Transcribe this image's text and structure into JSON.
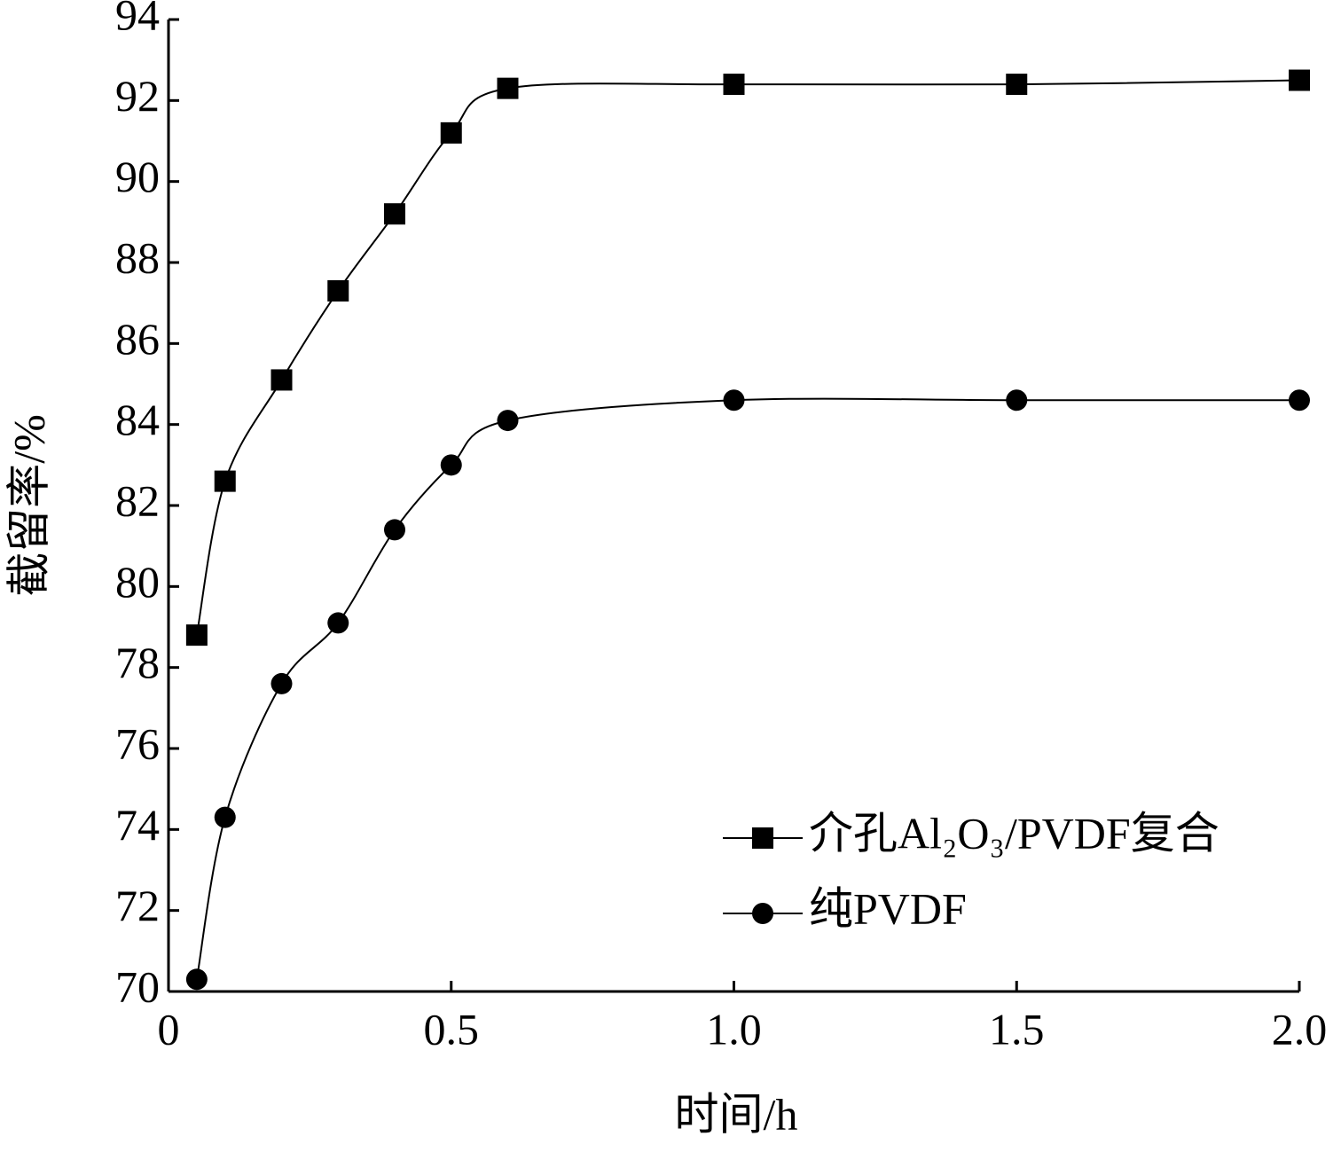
{
  "chart_data": {
    "type": "line",
    "x_label": "时间/h",
    "y_label": "截留率/%",
    "x": [
      0.05,
      0.1,
      0.2,
      0.3,
      0.4,
      0.5,
      0.6,
      1.0,
      1.5,
      2.0
    ],
    "series": [
      {
        "name": "介孔Al₂O₃/PVDF复合",
        "color": "#000000",
        "marker": "square",
        "values": [
          78.8,
          82.6,
          85.1,
          87.3,
          89.2,
          91.2,
          92.3,
          92.4,
          92.4,
          92.5
        ]
      },
      {
        "name": "纯PVDF",
        "color": "#000000",
        "marker": "circle",
        "values": [
          70.3,
          74.3,
          77.6,
          79.1,
          81.4,
          83.0,
          84.1,
          84.6,
          84.6,
          84.6
        ]
      }
    ],
    "xlim": [
      0,
      2
    ],
    "xticks": [
      0,
      0.5,
      {
        "value": 1,
        "label": "1.0"
      },
      1.5,
      {
        "value": 2,
        "label": "2.0"
      }
    ],
    "ylim": [
      70,
      94
    ],
    "yticks": [
      70,
      72,
      74,
      76,
      78,
      80,
      82,
      84,
      86,
      88,
      90,
      92,
      94
    ],
    "legend": "lower right",
    "grid": false
  }
}
